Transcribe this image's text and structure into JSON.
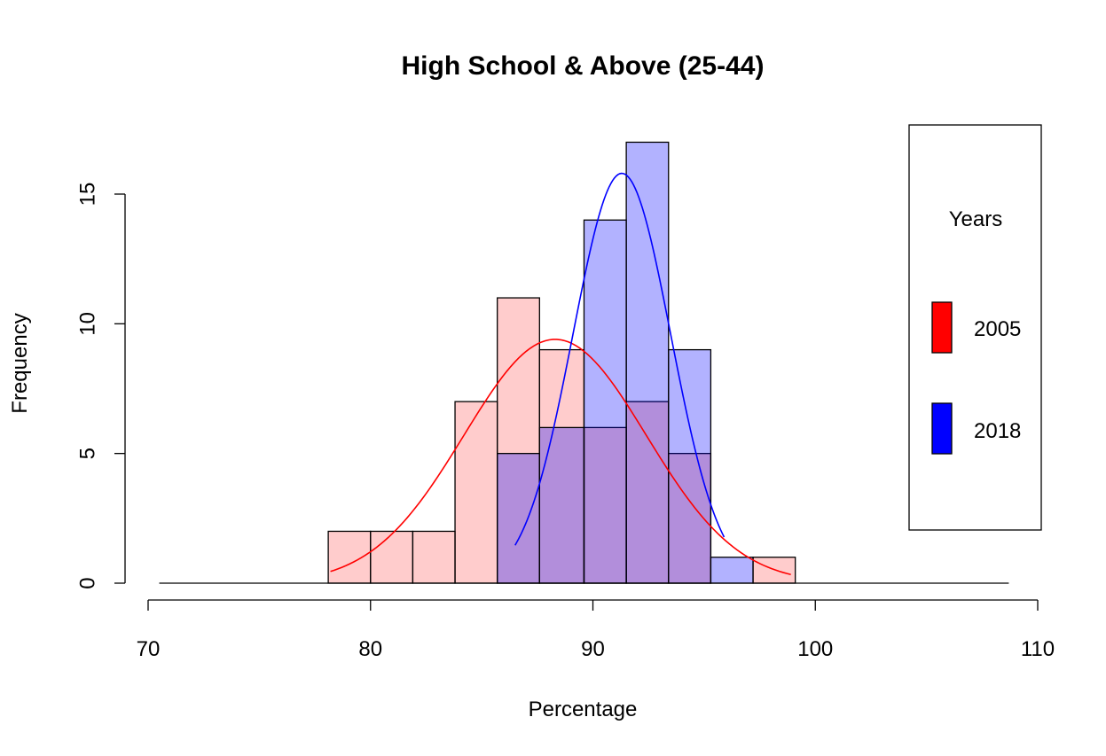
{
  "chart_data": {
    "type": "histogram",
    "title": "High School & Above (25-44)",
    "xlabel": "Percentage",
    "ylabel": "Frequency",
    "xlim": [
      70,
      110
    ],
    "ylim": [
      0,
      15
    ],
    "x_ticks": [
      70,
      80,
      90,
      100,
      110
    ],
    "y_ticks": [
      0,
      5,
      10,
      15
    ],
    "grid": false,
    "legend": {
      "title": "Years",
      "placement": "right",
      "entries": [
        {
          "label": "2005",
          "color": "#ff0000"
        },
        {
          "label": "2018",
          "color": "#0000ff"
        }
      ]
    },
    "series": [
      {
        "name": "2005",
        "fill": "rgba(255,0,0,0.2)",
        "curve_color": "#ff0000",
        "bins": [
          {
            "x0": 78.1,
            "x1": 80.0,
            "count": 2
          },
          {
            "x0": 80.0,
            "x1": 81.9,
            "count": 2
          },
          {
            "x0": 81.9,
            "x1": 83.8,
            "count": 2
          },
          {
            "x0": 83.8,
            "x1": 85.7,
            "count": 7
          },
          {
            "x0": 85.7,
            "x1": 87.6,
            "count": 11
          },
          {
            "x0": 87.6,
            "x1": 89.6,
            "count": 9
          },
          {
            "x0": 89.6,
            "x1": 91.5,
            "count": 6
          },
          {
            "x0": 91.5,
            "x1": 93.4,
            "count": 7
          },
          {
            "x0": 93.4,
            "x1": 95.3,
            "count": 5
          },
          {
            "x0": 95.3,
            "x1": 97.2,
            "count": 0
          },
          {
            "x0": 97.2,
            "x1": 99.1,
            "count": 1
          }
        ],
        "curve": {
          "mean": 88.3,
          "sd": 4.1,
          "x_range": [
            78.2,
            98.9
          ],
          "peak": 9.4
        }
      },
      {
        "name": "2018",
        "fill": "rgba(0,0,255,0.3)",
        "curve_color": "#0000ff",
        "bins": [
          {
            "x0": 85.7,
            "x1": 87.6,
            "count": 5
          },
          {
            "x0": 87.6,
            "x1": 89.6,
            "count": 6
          },
          {
            "x0": 89.6,
            "x1": 91.5,
            "count": 14
          },
          {
            "x0": 91.5,
            "x1": 93.4,
            "count": 17
          },
          {
            "x0": 93.4,
            "x1": 95.3,
            "count": 9
          },
          {
            "x0": 95.3,
            "x1": 97.2,
            "count": 1
          }
        ],
        "curve": {
          "mean": 91.3,
          "sd": 2.2,
          "x_range": [
            86.5,
            95.9
          ],
          "peak": 15.8
        }
      }
    ],
    "baseline_range": [
      70.5,
      108.7
    ]
  }
}
